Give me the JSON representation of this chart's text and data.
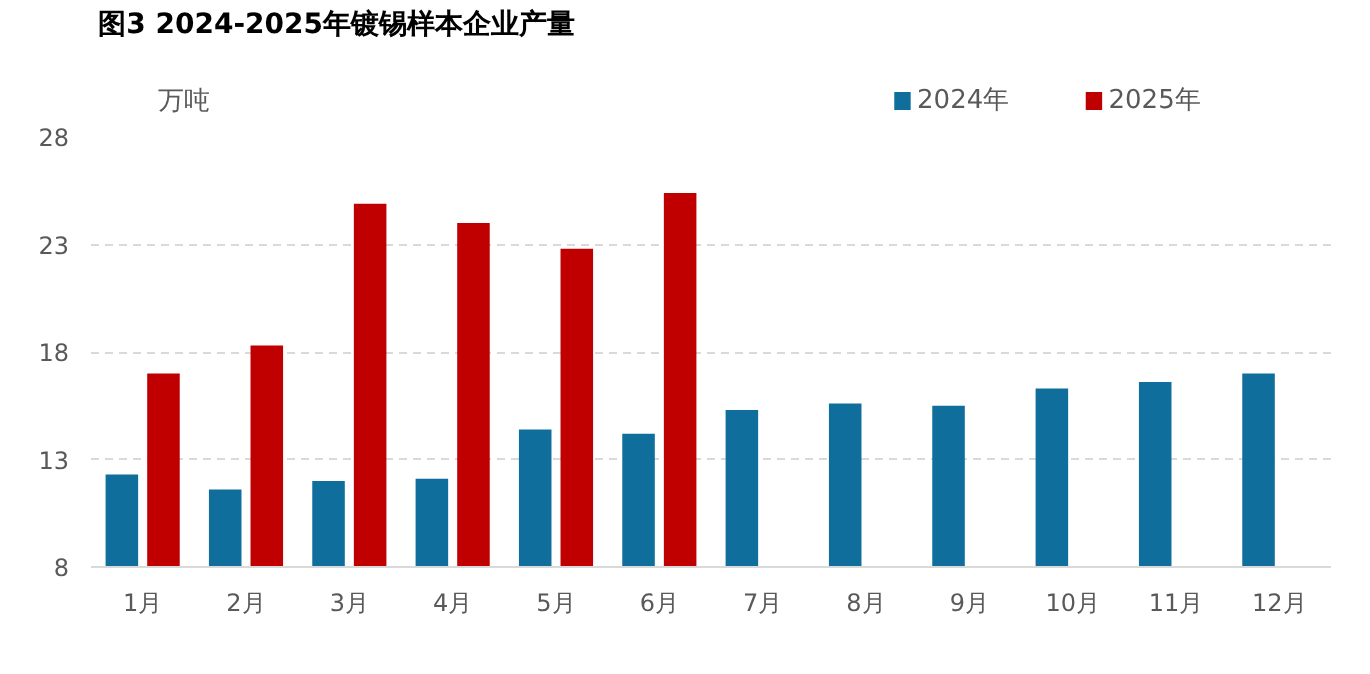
{
  "chart_data": {
    "type": "bar",
    "title": "图3 2024-2025年镀锡样本企业产量",
    "ylabel": "万吨",
    "categories": [
      "1月",
      "2月",
      "3月",
      "4月",
      "5月",
      "6月",
      "7月",
      "8月",
      "9月",
      "10月",
      "11月",
      "12月"
    ],
    "series": [
      {
        "name": "2024年",
        "color": "#106e9d",
        "values": [
          12.3,
          11.6,
          12.0,
          12.1,
          14.4,
          14.2,
          15.3,
          15.6,
          15.5,
          16.3,
          16.6,
          17.0
        ]
      },
      {
        "name": "2025年",
        "color": "#c00000",
        "values": [
          17.0,
          18.3,
          24.9,
          24.0,
          22.8,
          25.4,
          null,
          null,
          null,
          null,
          null,
          null
        ]
      }
    ],
    "ylim": [
      8,
      28
    ],
    "yticks": [
      8,
      13,
      18,
      23,
      28
    ],
    "grid": "y",
    "legend": "top"
  }
}
